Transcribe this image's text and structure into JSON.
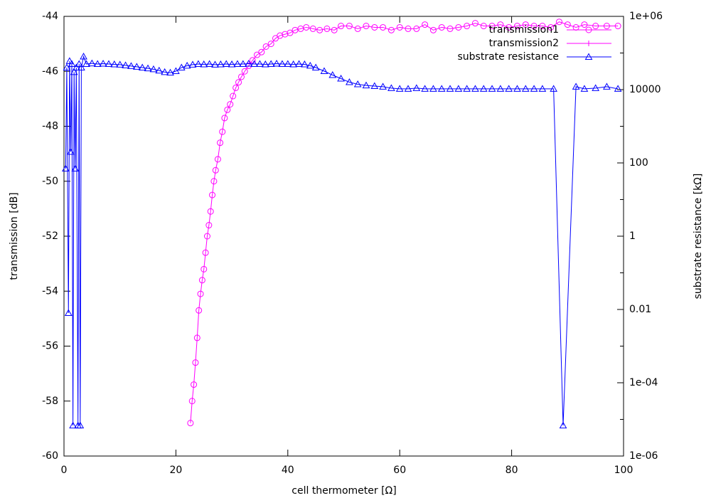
{
  "chart_data": {
    "type": "line",
    "xlabel": "cell thermometer [Ω]",
    "ylabel": "transmission [dB]",
    "y2label": "substrate resistance [kΩ]",
    "xlim": [
      0,
      100
    ],
    "xticks": [
      0,
      20,
      40,
      60,
      80,
      100
    ],
    "ylim": [
      -60,
      -44
    ],
    "yticks": [
      -60,
      -58,
      -56,
      -54,
      -52,
      -50,
      -48,
      -46,
      -44
    ],
    "y2lim": [
      1e-06,
      1000000
    ],
    "y2log": true,
    "y2ticks": [
      {
        "value": 1e-06,
        "label": "1e-06"
      },
      {
        "value": 0.0001,
        "label": "1e-04"
      },
      0.01,
      1,
      100,
      10000,
      {
        "value": 1000000,
        "label": "1e+06"
      }
    ],
    "legend": "top-right",
    "series": [
      {
        "name": "transmission1",
        "color": "#ff00ff",
        "marker": "circle",
        "x": [
          22.6,
          22.9,
          23.2,
          23.5,
          23.8,
          24.1,
          24.4,
          24.7,
          25.0,
          25.3,
          25.6,
          25.9,
          26.2,
          26.5,
          26.8,
          27.1,
          27.5,
          27.9,
          28.3,
          28.7,
          29.2,
          29.7,
          30.2,
          30.7,
          31.2,
          31.7,
          32.3,
          33.0,
          33.7,
          34.5,
          35.3,
          36.1,
          37.0,
          37.8,
          38.6,
          39.5,
          40.4,
          41.3,
          42.3,
          43.3,
          44.5,
          45.7,
          47,
          48.3,
          49.5,
          51,
          52.5,
          54,
          55.5,
          57,
          58.5,
          60,
          61.5,
          63,
          64.5,
          66,
          67.5,
          69,
          70.5,
          72,
          73.5,
          75,
          76.5,
          78,
          79.5,
          81,
          82.5,
          84,
          85.5,
          87,
          88.5,
          90,
          91.5,
          93,
          95,
          97,
          99
        ],
        "values": [
          -58.8,
          -58.0,
          -57.4,
          -56.6,
          -55.7,
          -54.7,
          -54.1,
          -53.6,
          -53.2,
          -52.6,
          -52.0,
          -51.6,
          -51.1,
          -50.5,
          -50.0,
          -49.6,
          -49.2,
          -48.6,
          -48.2,
          -47.7,
          -47.4,
          -47.2,
          -46.9,
          -46.6,
          -46.4,
          -46.2,
          -46.0,
          -45.8,
          -45.6,
          -45.4,
          -45.3,
          -45.1,
          -45.0,
          -44.8,
          -44.7,
          -44.65,
          -44.6,
          -44.5,
          -44.45,
          -44.4,
          -44.45,
          -44.5,
          -44.45,
          -44.5,
          -44.35,
          -44.35,
          -44.45,
          -44.35,
          -44.4,
          -44.4,
          -44.5,
          -44.4,
          -44.45,
          -44.45,
          -44.3,
          -44.5,
          -44.4,
          -44.45,
          -44.4,
          -44.35,
          -44.25,
          -44.35,
          -44.35,
          -44.3,
          -44.4,
          -44.35,
          -44.3,
          -44.35,
          -44.35,
          -44.4,
          -44.2,
          -44.3,
          -44.4,
          -44.3,
          -44.35,
          -44.35,
          -44.35
        ]
      },
      {
        "name": "transmission2",
        "color": "#ff00ff",
        "marker": "plus",
        "x": [],
        "values": []
      },
      {
        "name": "substrate resistance",
        "color": "#0000ff",
        "marker": "triangle",
        "axis": "y2",
        "x": [
          0.3,
          0.5,
          0.8,
          1.0,
          1.2,
          1.4,
          1.6,
          1.8,
          2.0,
          2.2,
          2.5,
          2.7,
          2.9,
          3.1,
          3.5,
          4,
          5,
          6,
          7,
          8,
          9,
          10,
          11,
          12,
          13,
          14,
          15,
          16,
          17,
          18,
          19,
          20,
          21,
          22,
          23,
          24,
          25,
          26,
          27,
          28,
          29,
          30,
          31,
          32,
          33,
          34,
          35,
          36,
          37,
          38,
          39,
          40,
          41,
          42,
          43,
          44,
          45,
          46.5,
          48,
          49.5,
          51,
          52.5,
          54,
          55.5,
          57,
          58.5,
          60,
          61.5,
          63,
          64.5,
          66,
          67.5,
          69,
          70.5,
          72,
          73.5,
          75,
          76.5,
          78,
          79.5,
          81,
          82.5,
          84,
          85.5,
          87.5,
          89.2,
          91.5,
          93,
          95,
          97,
          99
        ],
        "values": [
          70,
          40000,
          0.008,
          60000,
          200,
          50000,
          6.8e-06,
          30000,
          70,
          40000,
          6.8e-06,
          50000,
          6.8e-06,
          40000,
          80000,
          50000,
          52000,
          50000,
          51000,
          50000,
          49000,
          48000,
          46000,
          44000,
          42000,
          40000,
          38000,
          36000,
          33000,
          30000,
          29000,
          32000,
          40000,
          45000,
          48000,
          50000,
          49000,
          50000,
          48000,
          49000,
          50000,
          49000,
          50000,
          50000,
          51000,
          50000,
          50000,
          49000,
          50000,
          51000,
          50000,
          50000,
          49000,
          50000,
          49000,
          45000,
          40000,
          32000,
          25000,
          20000,
          16000,
          14000,
          13000,
          12500,
          12000,
          11000,
          10500,
          10500,
          11000,
          10500,
          10500,
          10500,
          10500,
          10500,
          10500,
          10500,
          10500,
          10500,
          10500,
          10500,
          10500,
          10500,
          10500,
          10500,
          10500,
          6.8e-06,
          12000,
          10500,
          11000,
          12000,
          10500
        ]
      }
    ]
  }
}
